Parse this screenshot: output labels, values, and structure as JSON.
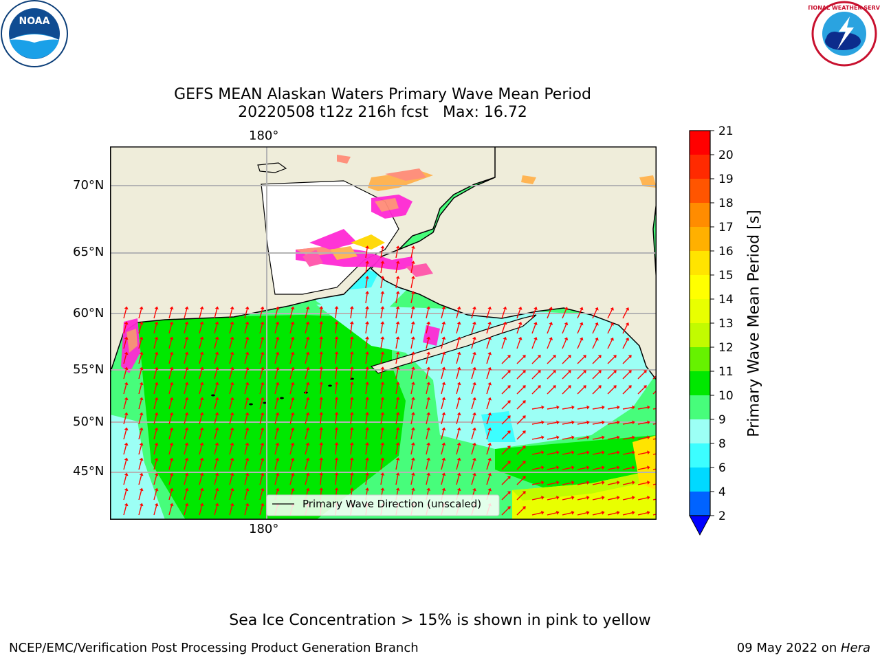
{
  "title": {
    "line1": "GEFS MEAN Alaskan Waters Primary Wave Mean Period",
    "line2": "20220508 t12z 216h fcst   Max: 16.72"
  },
  "logos": {
    "left": "noaa-logo",
    "left_text": "NOAA",
    "right": "nws-logo",
    "right_text": "NATIONAL WEATHER SERVICE"
  },
  "map": {
    "lon_label_top": "180°",
    "lon_label_bottom": "180°",
    "lat_labels": [
      "70°N",
      "65°N",
      "60°N",
      "55°N",
      "50°N",
      "45°N"
    ],
    "legend_label": "Primary Wave Direction (unscaled)",
    "land_color": "#efedda",
    "ice_colors": [
      "#ff2ad4",
      "#ff55aa",
      "#ff8c78",
      "#ffb24d",
      "#ffd700"
    ]
  },
  "colorbar": {
    "label": "Primary Wave Mean Period [s]",
    "ticks": [
      "2",
      "4",
      "6",
      "8",
      "9",
      "10",
      "11",
      "12",
      "13",
      "14",
      "15",
      "16",
      "17",
      "18",
      "19",
      "20",
      "21"
    ],
    "colors": [
      "#0063ff",
      "#00d9ff",
      "#3cfeff",
      "#9cfff5",
      "#47fd7b",
      "#00e800",
      "#66f200",
      "#c2fb00",
      "#e9ff00",
      "#ffff00",
      "#ffe400",
      "#ffb000",
      "#ff8c00",
      "#ff5500",
      "#ff2a00",
      "#ff0000"
    ],
    "extend_color": "#0000ff"
  },
  "caption": "Sea Ice Concentration > 15% is shown in pink to yellow",
  "footer": {
    "left": "NCEP/EMC/Verification Post Processing Product Generation Branch",
    "right_prefix": "09 May 2022 on ",
    "right_italic": "Hera"
  }
}
